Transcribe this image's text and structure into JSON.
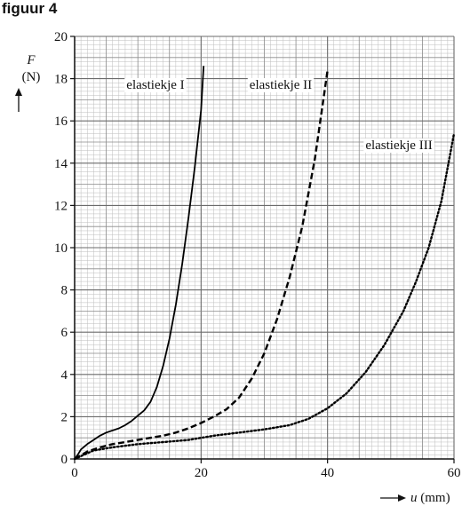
{
  "figure_title": "figuur 4",
  "chart_data": {
    "type": "line",
    "xlabel": "u (mm)",
    "ylabel_symbol": "F",
    "ylabel_unit": "(N)",
    "xlim": [
      0,
      60
    ],
    "ylim": [
      0,
      20
    ],
    "x_ticks": [
      "0",
      "20",
      "40",
      "60"
    ],
    "y_ticks": [
      "0",
      "2",
      "4",
      "6",
      "8",
      "10",
      "12",
      "14",
      "16",
      "18",
      "20"
    ],
    "grid": true,
    "series": [
      {
        "name": "elastiekje I",
        "style": "solid",
        "points": [
          [
            0,
            0
          ],
          [
            0.5,
            0.2
          ],
          [
            1,
            0.45
          ],
          [
            2,
            0.7
          ],
          [
            3,
            0.9
          ],
          [
            4,
            1.1
          ],
          [
            5,
            1.25
          ],
          [
            6,
            1.35
          ],
          [
            7,
            1.45
          ],
          [
            8,
            1.6
          ],
          [
            9,
            1.8
          ],
          [
            10,
            2.05
          ],
          [
            11,
            2.3
          ],
          [
            12,
            2.7
          ],
          [
            13,
            3.4
          ],
          [
            14,
            4.4
          ],
          [
            15,
            5.7
          ],
          [
            16,
            7.3
          ],
          [
            17,
            9.2
          ],
          [
            18,
            11.4
          ],
          [
            19,
            13.8
          ],
          [
            20,
            16.5
          ],
          [
            20.4,
            18.6
          ]
        ]
      },
      {
        "name": "elastiekje II",
        "style": "dashed",
        "points": [
          [
            0,
            0
          ],
          [
            2,
            0.35
          ],
          [
            4,
            0.55
          ],
          [
            6,
            0.7
          ],
          [
            8,
            0.8
          ],
          [
            10,
            0.9
          ],
          [
            12,
            1.0
          ],
          [
            14,
            1.1
          ],
          [
            16,
            1.25
          ],
          [
            18,
            1.45
          ],
          [
            20,
            1.7
          ],
          [
            22,
            2.0
          ],
          [
            24,
            2.35
          ],
          [
            26,
            2.9
          ],
          [
            28,
            3.8
          ],
          [
            30,
            5.0
          ],
          [
            32,
            6.6
          ],
          [
            34,
            8.6
          ],
          [
            36,
            11.0
          ],
          [
            38,
            14.2
          ],
          [
            40,
            18.4
          ]
        ]
      },
      {
        "name": "elastiekje III",
        "style": "dotted",
        "points": [
          [
            0,
            0
          ],
          [
            3,
            0.4
          ],
          [
            6,
            0.55
          ],
          [
            10,
            0.7
          ],
          [
            14,
            0.8
          ],
          [
            18,
            0.9
          ],
          [
            22,
            1.1
          ],
          [
            26,
            1.25
          ],
          [
            30,
            1.4
          ],
          [
            34,
            1.6
          ],
          [
            37,
            1.9
          ],
          [
            40,
            2.4
          ],
          [
            43,
            3.1
          ],
          [
            46,
            4.1
          ],
          [
            49,
            5.4
          ],
          [
            52,
            7.0
          ],
          [
            54,
            8.4
          ],
          [
            56,
            10.0
          ],
          [
            58,
            12.2
          ],
          [
            60,
            15.4
          ]
        ]
      }
    ],
    "colors": {
      "lines": "#000000",
      "grid_major": "#6b6b6b",
      "grid_minor": "#bdbdbd",
      "background": "#ffffff"
    }
  }
}
